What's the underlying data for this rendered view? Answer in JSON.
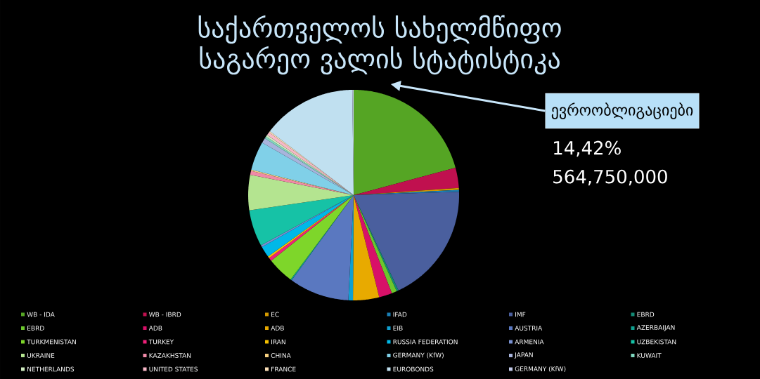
{
  "chart_data": {
    "type": "pie",
    "title": "საქართველოს სახელმწიფო საგარეო ვალის სტატისტიკა",
    "categories": [
      "WB - IDA",
      "WB - IBRD",
      "EC",
      "IFAD",
      "IMF",
      "EBRD",
      "EBRD",
      "ADB",
      "ADB",
      "EIB",
      "AUSTRIA",
      "AZERBAIJAN",
      "TURKMENISTAN",
      "TURKEY",
      "IRAN",
      "RUSSIA FEDERATION",
      "ARMENIA",
      "UZBEKISTAN",
      "UKRAINE",
      "KAZAKHSTAN",
      "CHINA",
      "GERMANY (KfW)",
      "JAPAN",
      "KUWAIT",
      "NETHERLANDS",
      "UNITED STATES",
      "FRANCE",
      "EUROBONDS",
      "GERMANY (KfW)"
    ],
    "values": [
      20.82,
      3.1,
      0.3,
      0.3,
      18.5,
      0.3,
      0.8,
      2.0,
      4.0,
      0.7,
      9.2,
      0.2,
      4.1,
      0.5,
      0.3,
      1.7,
      0.3,
      5.6,
      5.4,
      0.6,
      0.2,
      4.4,
      0.8,
      0.3,
      0.3,
      0.5,
      0.2,
      14.42,
      0.2
    ],
    "colors": [
      "#55a524",
      "#c0104f",
      "#d49a00",
      "#1a7fb5",
      "#4a5f9e",
      "#138a75",
      "#6cc72c",
      "#d81068",
      "#e8aa00",
      "#10a0d0",
      "#5a78c0",
      "#10a090",
      "#7ed62a",
      "#f0207a",
      "#f5c000",
      "#00b8e8",
      "#7890d0",
      "#16c2a6",
      "#b4e490",
      "#f08aa8",
      "#f8d080",
      "#80d0e8",
      "#a8b4dc",
      "#80d8c0",
      "#d0ecc0",
      "#f8b8c8",
      "#fce0b8",
      "#c0e0f0",
      "#c0c8e8"
    ],
    "legend": "bottom",
    "annotations": [
      {
        "text": "ევროობლიგაციები",
        "x": "EUROBONDS"
      },
      "14,42%",
      "564,750,000"
    ]
  }
}
